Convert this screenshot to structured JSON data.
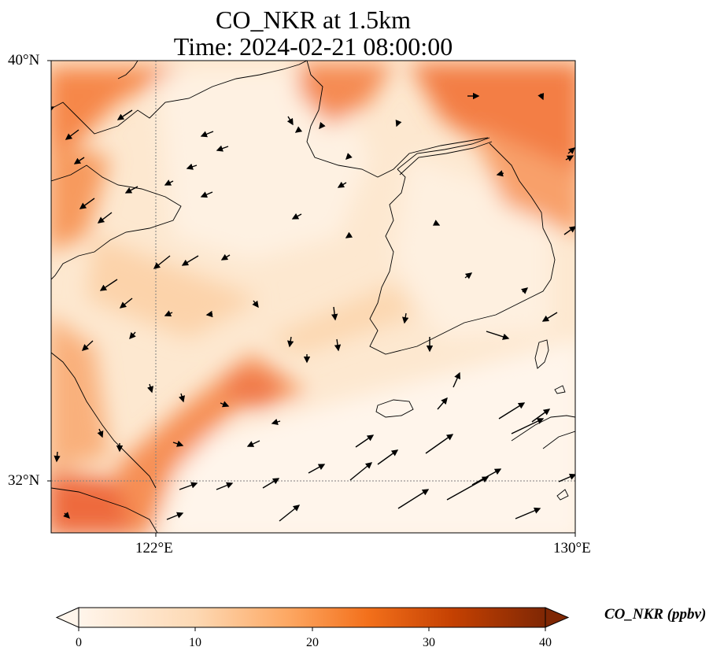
{
  "title": {
    "line1": "CO_NKR at 1.5km",
    "line2": "Time: 2024-02-21 08:00:00"
  },
  "axes": {
    "lat_ticks": [
      "40°N",
      "32°N"
    ],
    "lon_ticks": [
      "122°E",
      "130°E"
    ],
    "lat_range": [
      31,
      40
    ],
    "lon_range": [
      120,
      130
    ]
  },
  "colorbar": {
    "label": "CO_NKR (ppbv)",
    "ticks": [
      "0",
      "10",
      "20",
      "30",
      "40"
    ],
    "colors": [
      "#fff5eb",
      "#fdd9b4",
      "#fda762",
      "#f3701b",
      "#c54102",
      "#7f2704"
    ],
    "extend": "both"
  },
  "colors": {
    "coast": "#000000",
    "grid": "#808080",
    "arrow": "#000000"
  }
}
